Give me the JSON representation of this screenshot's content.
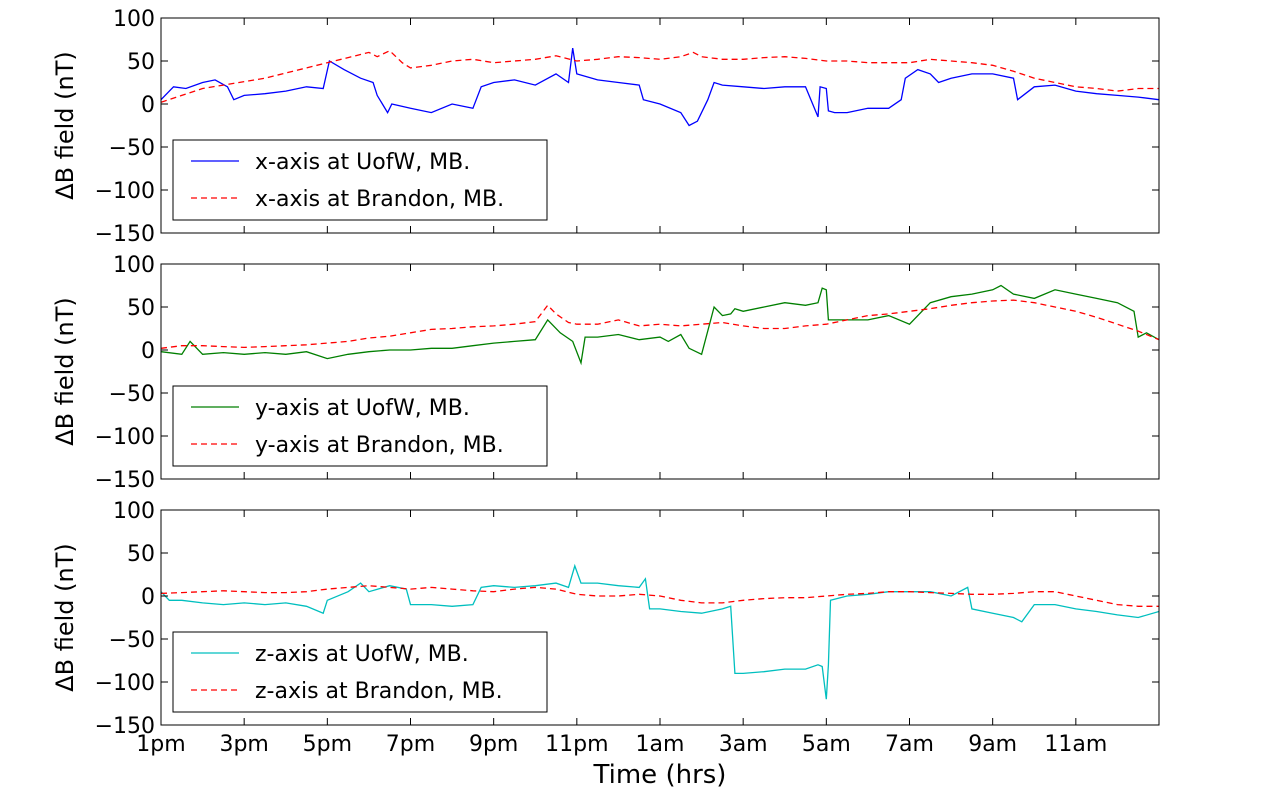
{
  "chart_data": [
    {
      "type": "line",
      "ylabel": "ΔB field (nT)",
      "ylim": [
        -150,
        100
      ],
      "yticks": [
        -150,
        -100,
        -50,
        0,
        50,
        100
      ],
      "xlim": [
        0,
        24
      ],
      "grid": false,
      "legend_position": "lower-left",
      "series": [
        {
          "name": "x-axis at UofW, MB.",
          "style": "solid",
          "color": "#0000ff",
          "x": [
            0,
            0.3,
            0.6,
            1.0,
            1.3,
            1.6,
            1.75,
            2.0,
            2.5,
            3.0,
            3.5,
            3.9,
            4.05,
            4.4,
            4.8,
            5.1,
            5.2,
            5.45,
            5.55,
            6.0,
            6.5,
            7.0,
            7.5,
            7.7,
            8.0,
            8.5,
            9.0,
            9.5,
            9.8,
            9.9,
            10.0,
            10.5,
            11.0,
            11.5,
            11.6,
            12.0,
            12.5,
            12.7,
            12.9,
            13.15,
            13.3,
            13.5,
            14.0,
            14.5,
            15.0,
            15.5,
            15.8,
            15.85,
            16.0,
            16.05,
            16.2,
            16.5,
            17.0,
            17.5,
            17.8,
            17.9,
            18.2,
            18.5,
            18.7,
            19.0,
            19.5,
            20.0,
            20.5,
            20.6,
            21.0,
            21.5,
            22.0,
            22.5,
            23.0,
            23.5,
            24.0
          ],
          "y": [
            5,
            20,
            18,
            25,
            28,
            20,
            5,
            10,
            12,
            15,
            20,
            18,
            50,
            40,
            30,
            25,
            10,
            -10,
            0,
            -5,
            -10,
            0,
            -5,
            20,
            25,
            28,
            22,
            35,
            25,
            65,
            35,
            28,
            25,
            22,
            5,
            0,
            -10,
            -25,
            -20,
            5,
            25,
            22,
            20,
            18,
            20,
            20,
            -15,
            20,
            18,
            -8,
            -10,
            -10,
            -5,
            -5,
            5,
            30,
            40,
            35,
            25,
            30,
            35,
            35,
            30,
            5,
            20,
            22,
            15,
            12,
            10,
            8,
            5
          ]
        },
        {
          "name": "x-axis at Brandon, MB.",
          "style": "dashed",
          "color": "#ff0000",
          "x": [
            0,
            0.5,
            1.0,
            1.5,
            2.0,
            2.5,
            3.0,
            3.5,
            4.0,
            4.5,
            5.0,
            5.2,
            5.5,
            5.8,
            6.0,
            6.5,
            7.0,
            7.5,
            8.0,
            8.5,
            9.0,
            9.5,
            10.0,
            10.5,
            11.0,
            11.5,
            12.0,
            12.5,
            12.8,
            13.0,
            13.5,
            14.0,
            14.5,
            15.0,
            15.5,
            16.0,
            16.5,
            17.0,
            17.5,
            18.0,
            18.5,
            19.0,
            19.5,
            20.0,
            20.5,
            21.0,
            21.5,
            22.0,
            22.5,
            23.0,
            23.5,
            24.0
          ],
          "y": [
            2,
            10,
            18,
            22,
            26,
            30,
            36,
            42,
            48,
            54,
            60,
            55,
            62,
            48,
            42,
            45,
            50,
            52,
            48,
            50,
            52,
            56,
            50,
            52,
            55,
            54,
            52,
            55,
            60,
            55,
            52,
            52,
            54,
            55,
            53,
            50,
            50,
            48,
            48,
            48,
            52,
            50,
            48,
            45,
            38,
            30,
            25,
            20,
            18,
            15,
            18,
            18
          ]
        }
      ]
    },
    {
      "type": "line",
      "ylabel": "ΔB field (nT)",
      "ylim": [
        -150,
        100
      ],
      "yticks": [
        -150,
        -100,
        -50,
        0,
        50,
        100
      ],
      "xlim": [
        0,
        24
      ],
      "grid": false,
      "legend_position": "lower-left",
      "series": [
        {
          "name": "y-axis at UofW, MB.",
          "style": "solid",
          "color": "#007f00",
          "x": [
            0,
            0.5,
            0.7,
            1.0,
            1.5,
            2.0,
            2.5,
            3.0,
            3.5,
            4.0,
            4.5,
            5.0,
            5.5,
            6.0,
            6.5,
            7.0,
            7.5,
            8.0,
            8.5,
            9.0,
            9.3,
            9.6,
            9.9,
            10.1,
            10.2,
            10.5,
            11.0,
            11.5,
            12.0,
            12.2,
            12.5,
            12.7,
            13.0,
            13.3,
            13.5,
            13.7,
            13.8,
            14.0,
            14.5,
            15.0,
            15.5,
            15.8,
            15.9,
            16.0,
            16.05,
            16.5,
            17.0,
            17.5,
            18.0,
            18.5,
            19.0,
            19.5,
            20.0,
            20.2,
            20.5,
            21.0,
            21.5,
            22.0,
            22.5,
            23.0,
            23.4,
            23.5,
            23.7,
            24.0
          ],
          "y": [
            -2,
            -5,
            10,
            -5,
            -3,
            -5,
            -3,
            -5,
            -2,
            -10,
            -5,
            -2,
            0,
            0,
            2,
            2,
            5,
            8,
            10,
            12,
            35,
            20,
            10,
            -15,
            15,
            15,
            18,
            12,
            15,
            10,
            18,
            2,
            -5,
            50,
            40,
            42,
            48,
            45,
            50,
            55,
            52,
            55,
            72,
            70,
            35,
            35,
            35,
            40,
            30,
            55,
            62,
            65,
            70,
            75,
            65,
            60,
            70,
            65,
            60,
            55,
            45,
            15,
            20,
            12
          ]
        },
        {
          "name": "y-axis at Brandon, MB.",
          "style": "dashed",
          "color": "#ff0000",
          "x": [
            0,
            0.5,
            1.0,
            1.5,
            2.0,
            2.5,
            3.0,
            3.5,
            4.0,
            4.5,
            5.0,
            5.5,
            6.0,
            6.5,
            7.0,
            7.5,
            8.0,
            8.5,
            9.0,
            9.3,
            9.5,
            9.8,
            10.0,
            10.5,
            11.0,
            11.5,
            12.0,
            12.5,
            13.0,
            13.5,
            14.0,
            14.5,
            15.0,
            15.5,
            16.0,
            16.5,
            17.0,
            17.5,
            18.0,
            18.5,
            19.0,
            19.5,
            20.0,
            20.5,
            21.0,
            21.5,
            22.0,
            22.5,
            23.0,
            23.5,
            24.0
          ],
          "y": [
            2,
            5,
            5,
            4,
            3,
            4,
            5,
            6,
            8,
            10,
            14,
            16,
            20,
            24,
            25,
            27,
            28,
            30,
            33,
            52,
            42,
            32,
            30,
            30,
            35,
            28,
            30,
            28,
            30,
            32,
            28,
            25,
            25,
            28,
            30,
            35,
            40,
            42,
            45,
            48,
            52,
            55,
            57,
            58,
            55,
            50,
            45,
            38,
            30,
            22,
            12
          ]
        }
      ]
    },
    {
      "type": "line",
      "ylabel": "ΔB field (nT)",
      "xlabel": "Time (hrs)",
      "ylim": [
        -150,
        100
      ],
      "yticks": [
        -150,
        -100,
        -50,
        0,
        50,
        100
      ],
      "xlim": [
        0,
        24
      ],
      "xticks": [
        0,
        2,
        4,
        6,
        8,
        10,
        12,
        14,
        16,
        18,
        20,
        22
      ],
      "xticklabels": [
        "1pm",
        "3pm",
        "5pm",
        "7pm",
        "9pm",
        "11pm",
        "1am",
        "3am",
        "5am",
        "7am",
        "9am",
        "11am"
      ],
      "grid": false,
      "legend_position": "lower-left",
      "series": [
        {
          "name": "z-axis at UofW, MB.",
          "style": "solid",
          "color": "#00bfbf",
          "x": [
            0,
            0.2,
            0.5,
            1.0,
            1.5,
            2.0,
            2.5,
            3.0,
            3.5,
            3.9,
            4.0,
            4.5,
            4.8,
            5.0,
            5.5,
            5.9,
            6.0,
            6.5,
            7.0,
            7.5,
            7.7,
            8.0,
            8.5,
            9.0,
            9.5,
            9.8,
            9.95,
            10.1,
            10.5,
            11.0,
            11.5,
            11.65,
            11.75,
            12.0,
            12.5,
            13.0,
            13.5,
            13.7,
            13.8,
            14.0,
            14.5,
            15.0,
            15.5,
            15.8,
            15.9,
            16.0,
            16.05,
            16.1,
            16.5,
            17.0,
            17.5,
            18.0,
            18.5,
            19.0,
            19.4,
            19.5,
            20.0,
            20.5,
            20.7,
            21.0,
            21.5,
            22.0,
            22.5,
            23.0,
            23.5,
            24.0
          ],
          "y": [
            5,
            -5,
            -5,
            -8,
            -10,
            -8,
            -10,
            -8,
            -12,
            -20,
            -5,
            5,
            15,
            5,
            12,
            8,
            -10,
            -10,
            -12,
            -10,
            10,
            12,
            10,
            12,
            15,
            10,
            35,
            15,
            15,
            12,
            10,
            20,
            -15,
            -15,
            -18,
            -20,
            -15,
            -12,
            -90,
            -90,
            -88,
            -85,
            -85,
            -80,
            -82,
            -120,
            -80,
            -5,
            0,
            2,
            5,
            5,
            5,
            0,
            10,
            -15,
            -20,
            -25,
            -30,
            -10,
            -10,
            -15,
            -18,
            -22,
            -25,
            -18
          ]
        },
        {
          "name": "z-axis at Brandon, MB.",
          "style": "dashed",
          "color": "#ff0000",
          "x": [
            0,
            0.5,
            1.0,
            1.5,
            2.0,
            2.5,
            3.0,
            3.5,
            4.0,
            4.5,
            5.0,
            5.5,
            6.0,
            6.5,
            7.0,
            7.5,
            8.0,
            8.5,
            9.0,
            9.5,
            10.0,
            10.5,
            11.0,
            11.5,
            12.0,
            12.5,
            13.0,
            13.5,
            14.0,
            14.5,
            15.0,
            15.5,
            16.0,
            16.5,
            17.0,
            17.5,
            18.0,
            18.5,
            19.0,
            19.5,
            20.0,
            20.5,
            21.0,
            21.5,
            22.0,
            22.5,
            23.0,
            23.5,
            24.0
          ],
          "y": [
            3,
            4,
            5,
            6,
            5,
            4,
            4,
            5,
            8,
            10,
            12,
            10,
            8,
            10,
            8,
            6,
            5,
            8,
            10,
            8,
            2,
            0,
            0,
            2,
            0,
            -5,
            -8,
            -8,
            -5,
            -3,
            -2,
            -2,
            0,
            2,
            3,
            5,
            5,
            4,
            3,
            2,
            2,
            3,
            5,
            5,
            0,
            -5,
            -10,
            -12,
            -12
          ]
        }
      ]
    }
  ]
}
